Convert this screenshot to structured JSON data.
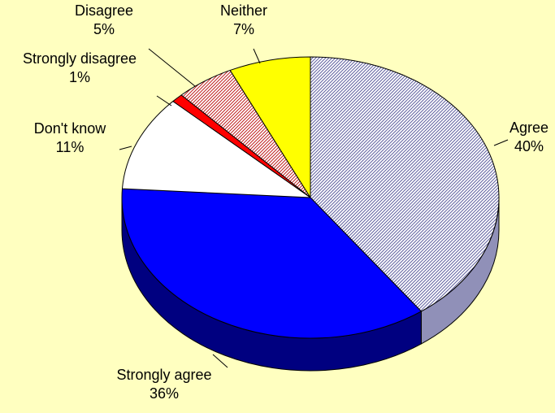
{
  "chart_data": {
    "type": "pie",
    "three_d": true,
    "title": "",
    "legend": "none",
    "slices": [
      {
        "label": "Agree",
        "value": 40,
        "value_label": "40%",
        "color": "#FFFFFF",
        "pattern": "diagonal-hatch",
        "pattern_color": "#6060A0"
      },
      {
        "label": "Strongly agree",
        "value": 36,
        "value_label": "36%",
        "color": "#0000FF",
        "pattern": "solid"
      },
      {
        "label": "Don't know",
        "value": 11,
        "value_label": "11%",
        "color": "#FFFFFF",
        "pattern": "solid"
      },
      {
        "label": "Strongly disagree",
        "value": 1,
        "value_label": "1%",
        "color": "#FF0000",
        "pattern": "solid"
      },
      {
        "label": "Disagree",
        "value": 5,
        "value_label": "5%",
        "color": "#FFFFFF",
        "pattern": "diagonal-hatch",
        "pattern_color": "#C02020"
      },
      {
        "label": "Neither",
        "value": 7,
        "value_label": "7%",
        "color": "#FFFF00",
        "pattern": "solid"
      }
    ],
    "colors": {
      "background": "#FFFFC0",
      "outline": "#000000",
      "side_blue": "#000080",
      "side_light": "#9090B8"
    }
  }
}
